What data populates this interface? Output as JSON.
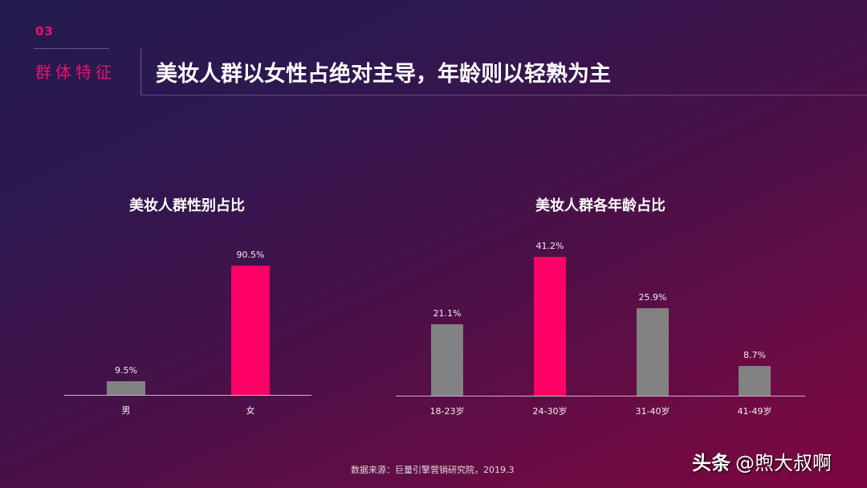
{
  "header": {
    "section_number": "03",
    "section_name": "群体特征",
    "title": "美妆人群以女性占绝对主导，年龄则以轻熟为主"
  },
  "colors": {
    "highlight": "#ff0066",
    "neutral": "#828282",
    "accent_text": "#e8146e"
  },
  "chart_data": [
    {
      "type": "bar",
      "title": "美妆人群性别占比",
      "categories": [
        "男",
        "女"
      ],
      "values": [
        9.5,
        90.5
      ],
      "value_labels": [
        "9.5%",
        "90.5%"
      ],
      "highlight_index": 1,
      "xlabel": "",
      "ylabel": "",
      "unit": "%",
      "grid": false,
      "legend": null
    },
    {
      "type": "bar",
      "title": "美妆人群各年龄占比",
      "categories": [
        "18-23岁",
        "24-30岁",
        "31-40岁",
        "41-49岁"
      ],
      "values": [
        21.1,
        41.2,
        25.9,
        8.7
      ],
      "value_labels": [
        "21.1%",
        "41.2%",
        "25.9%",
        "8.7%"
      ],
      "highlight_index": 1,
      "xlabel": "",
      "ylabel": "",
      "unit": "%",
      "grid": false,
      "legend": null
    }
  ],
  "footer": {
    "source": "数据来源：巨量引擎营销研究院，2019.3",
    "watermark_brand": "头条",
    "watermark_handle": "@煦大叔啊"
  }
}
